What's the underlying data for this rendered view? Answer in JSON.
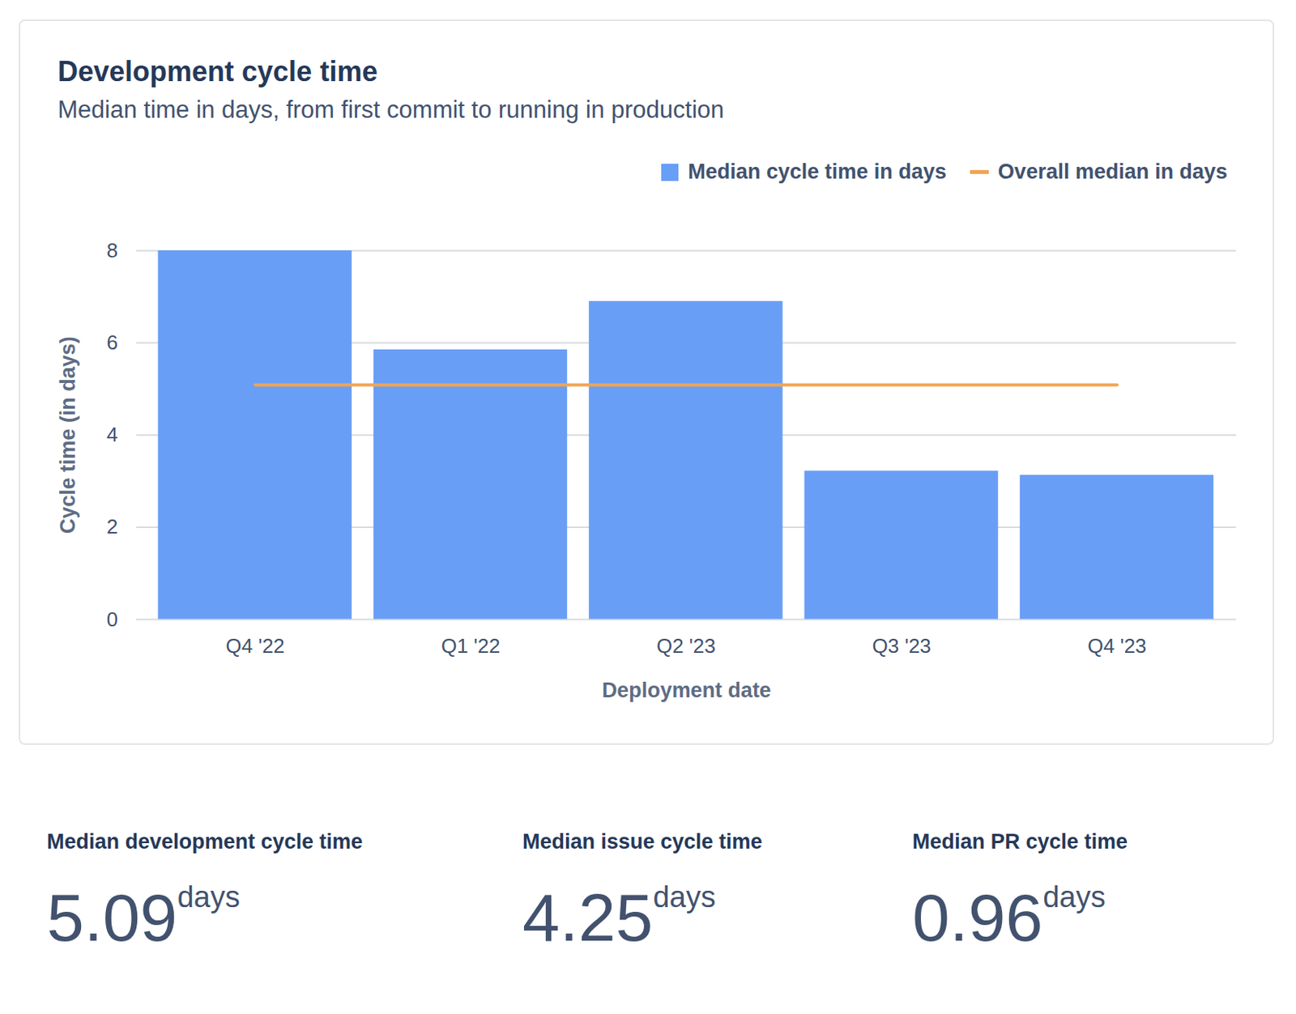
{
  "chart_data": {
    "type": "bar",
    "title": "Development cycle time",
    "subtitle": "Median time in days, from first commit to running in production",
    "x_label": "Deployment date",
    "y_label": "Cycle time (in days)",
    "categories": [
      "Q4 '22",
      "Q1 '22",
      "Q2 '23",
      "Q3 '23",
      "Q4 '23"
    ],
    "series": [
      {
        "name": "Median cycle time in days",
        "type": "bar",
        "color": "#699ef7",
        "values": [
          8.0,
          5.85,
          6.9,
          3.22,
          3.13
        ]
      },
      {
        "name": "Overall median in days",
        "type": "line",
        "color": "#f0a555",
        "values": [
          5.09,
          5.09,
          5.09,
          5.09,
          5.09
        ]
      }
    ],
    "ylim": [
      0,
      8
    ],
    "yticks": [
      0,
      2,
      4,
      6,
      8
    ],
    "grid": true,
    "legend": "top-right"
  },
  "stats": [
    {
      "label": "Median development cycle time",
      "value": 5.09,
      "unit": "days"
    },
    {
      "label": "Median issue cycle time",
      "value": 4.25,
      "unit": "days"
    },
    {
      "label": "Median PR cycle time",
      "value": 0.96,
      "unit": "days"
    }
  ]
}
